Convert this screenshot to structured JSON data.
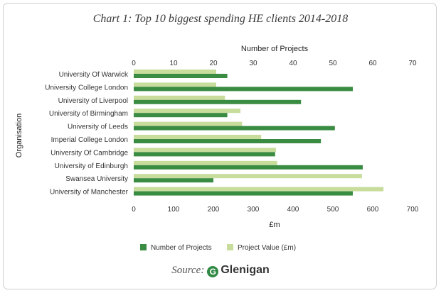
{
  "title": "Chart 1: Top 10 biggest spending HE clients 2014-2018",
  "source": {
    "label": "Source:",
    "logo_letter": "G",
    "brand": "Glenigan"
  },
  "chart_data": {
    "type": "bar",
    "orientation": "horizontal",
    "categories": [
      "University Of Warwick",
      "University College London",
      "University of Liverpool",
      "University of Birmingham",
      "University of Leeds",
      "Imperial College London",
      "University Of Cambridge",
      "University of Edinburgh",
      "Swansea University",
      "University of Manchester"
    ],
    "series": [
      {
        "name": "Number of Projects",
        "axis": "top",
        "color": "#3a8c43",
        "values": [
          23.5,
          55,
          42,
          23.5,
          50.5,
          47,
          35.5,
          57.5,
          20,
          55
        ]
      },
      {
        "name": "Project Value (£m)",
        "axis": "bottom",
        "color": "#c8dc9c",
        "values": [
          207,
          207,
          229,
          268,
          272,
          320,
          357,
          360,
          573,
          627
        ]
      }
    ],
    "top_axis": {
      "label": "Number of Projects",
      "lim": [
        0,
        70
      ],
      "ticks": [
        "0",
        "10",
        "20",
        "30",
        "40",
        "50",
        "60",
        "70"
      ]
    },
    "bottom_axis": {
      "label": "£m",
      "lim": [
        0,
        700
      ],
      "ticks": [
        "0",
        "100",
        "200",
        "300",
        "400",
        "500",
        "600",
        "700"
      ]
    },
    "ylabel": "Organisation",
    "grid": false,
    "legend": "bottom"
  }
}
